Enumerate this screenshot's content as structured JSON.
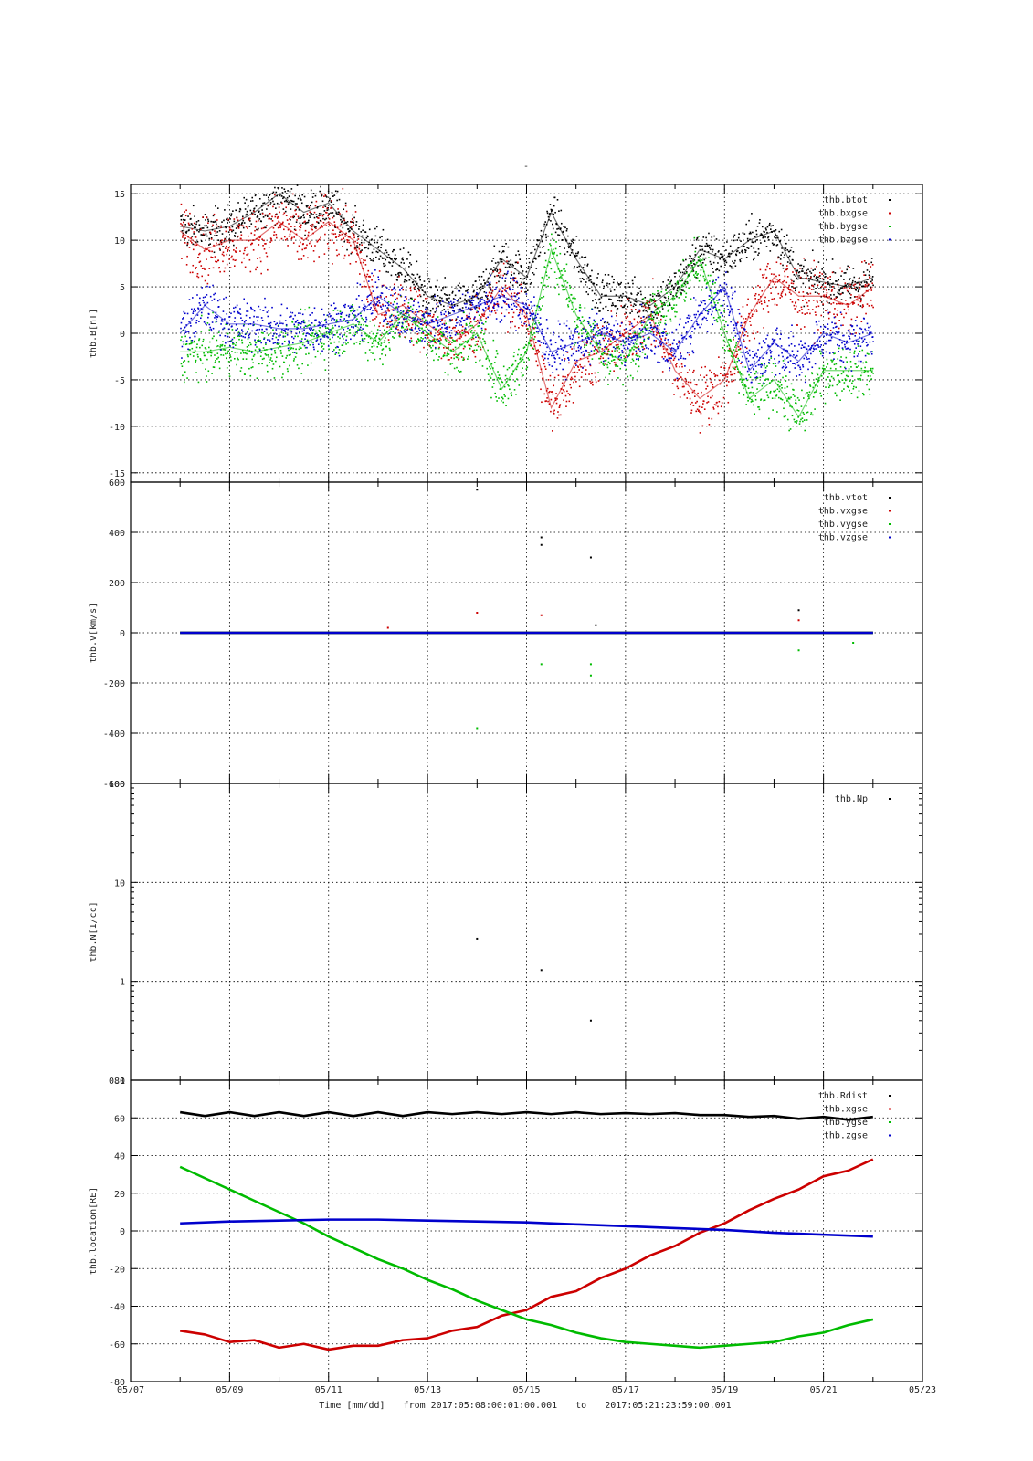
{
  "figure": {
    "top_mark": "-",
    "time_axis": {
      "label": "Time [mm/dd]",
      "from_text": "from 2017:05:08:00:01:00.001",
      "to_text": "to",
      "end_text": "2017:05:21:23:59:00.001",
      "ticks": [
        "05/07",
        "05/09",
        "05/11",
        "05/13",
        "05/15",
        "05/17",
        "05/19",
        "05/21",
        "05/23"
      ]
    }
  },
  "chart_data": [
    {
      "type": "scatter",
      "ylabel": "thb.B[nT]",
      "xlim": [
        7,
        23
      ],
      "ylim": [
        -16,
        16
      ],
      "yscale": "linear",
      "yticks": [
        -15,
        -10,
        -5,
        0,
        5,
        10,
        15
      ],
      "grid": true,
      "legend": "top-right",
      "series": [
        {
          "name": "thb.btot",
          "color": "#000000",
          "x": [
            8.0,
            8.5,
            9.0,
            9.5,
            10.0,
            10.5,
            11.0,
            11.5,
            12.0,
            12.5,
            13.0,
            13.5,
            14.0,
            14.5,
            15.0,
            15.5,
            16.0,
            16.5,
            17.0,
            17.5,
            18.0,
            18.5,
            19.0,
            19.5,
            20.0,
            20.5,
            21.0,
            21.5,
            22.0
          ],
          "y": [
            11.5,
            11,
            11.5,
            13,
            15,
            13,
            14,
            11,
            9,
            7,
            4,
            3,
            4,
            8,
            6,
            13,
            8,
            4,
            4,
            3,
            5,
            9,
            8,
            10,
            11,
            6,
            5.5,
            5,
            6
          ]
        },
        {
          "name": "thb.bxgse",
          "color": "#cc0000",
          "x": [
            8.0,
            8.5,
            9.0,
            9.5,
            10.0,
            10.5,
            11.0,
            11.5,
            12.0,
            12.5,
            13.0,
            13.5,
            14.0,
            14.5,
            15.0,
            15.5,
            16.0,
            16.5,
            17.0,
            17.5,
            18.0,
            18.5,
            19.0,
            19.5,
            20.0,
            20.5,
            21.0,
            21.5,
            22.0
          ],
          "y": [
            11,
            9,
            10,
            10,
            12,
            10,
            12,
            10,
            2,
            3,
            1,
            -1,
            1,
            5,
            2,
            -8,
            -3,
            -2,
            0,
            2,
            -4,
            -7,
            -5,
            2,
            6,
            4,
            4,
            3,
            5
          ]
        },
        {
          "name": "thb.bygse",
          "color": "#00bb00",
          "x": [
            8.0,
            8.5,
            9.0,
            9.5,
            10.0,
            10.5,
            11.0,
            11.5,
            12.0,
            12.5,
            13.0,
            13.5,
            14.0,
            14.5,
            15.0,
            15.5,
            16.0,
            16.5,
            17.0,
            17.5,
            18.0,
            18.5,
            19.0,
            19.5,
            20.0,
            20.5,
            21.0,
            21.5,
            22.0
          ],
          "y": [
            -2,
            -2,
            -1.5,
            -2,
            -1.5,
            -1,
            0,
            1,
            -1,
            2,
            0,
            -2,
            0,
            -6,
            -2,
            9,
            2,
            -2,
            -3,
            2,
            4,
            8,
            0,
            -7,
            -5,
            -9,
            -4,
            -4,
            -4
          ]
        },
        {
          "name": "thb.bzgse",
          "color": "#0000cc",
          "x": [
            8.0,
            8.5,
            9.0,
            9.5,
            10.0,
            10.5,
            11.0,
            11.5,
            12.0,
            12.5,
            13.0,
            13.5,
            14.0,
            14.5,
            15.0,
            15.5,
            16.0,
            16.5,
            17.0,
            17.5,
            18.0,
            18.5,
            19.0,
            19.5,
            20.0,
            20.5,
            21.0,
            21.5,
            22.0
          ],
          "y": [
            0,
            3,
            1,
            1,
            0.5,
            0.5,
            1,
            1.5,
            4,
            2,
            1,
            2,
            3,
            4,
            3,
            -2,
            -1,
            0,
            -1,
            0,
            -2,
            2,
            5,
            -4,
            -1,
            -3,
            0,
            -1,
            0
          ]
        }
      ]
    },
    {
      "type": "scatter",
      "ylabel": "thb.V[km/s]",
      "xlim": [
        7,
        23
      ],
      "ylim": [
        -600,
        600
      ],
      "yscale": "linear",
      "yticks": [
        -600,
        -400,
        -200,
        0,
        200,
        400,
        600
      ],
      "grid": true,
      "legend": "top-right",
      "series": [
        {
          "name": "thb.vtot",
          "color": "#000000",
          "x": [
            8.0,
            22.0
          ],
          "y": [
            0,
            0
          ],
          "outliers_x": [
            14.0,
            15.3,
            15.3,
            16.3,
            16.4,
            20.5
          ],
          "outliers_y": [
            570,
            380,
            350,
            300,
            30,
            90
          ]
        },
        {
          "name": "thb.vxgse",
          "color": "#cc0000",
          "x": [
            8.0,
            22.0
          ],
          "y": [
            0,
            0
          ],
          "outliers_x": [
            14.0,
            15.3,
            20.5,
            12.2
          ],
          "outliers_y": [
            80,
            70,
            50,
            20
          ]
        },
        {
          "name": "thb.vygse",
          "color": "#00bb00",
          "x": [
            8.0,
            22.0
          ],
          "y": [
            0,
            0
          ],
          "outliers_x": [
            14.0,
            15.3,
            16.3,
            16.3,
            20.5,
            21.6
          ],
          "outliers_y": [
            -380,
            -125,
            -125,
            -170,
            -70,
            -40
          ]
        },
        {
          "name": "thb.vzgse",
          "color": "#0000cc",
          "x": [
            8.0,
            22.0
          ],
          "y": [
            0,
            0
          ],
          "outliers_x": [],
          "outliers_y": []
        }
      ]
    },
    {
      "type": "scatter",
      "ylabel": "thb.N[1/cc]",
      "xlim": [
        7,
        23
      ],
      "ylim": [
        0.1,
        100
      ],
      "yscale": "log",
      "yticks": [
        0.1,
        1,
        10,
        100
      ],
      "ytick_labels": [
        "0.1",
        "1",
        "10",
        "100"
      ],
      "grid": true,
      "legend": "top-right",
      "series": [
        {
          "name": "thb.Np",
          "color": "#000000",
          "x": [
            14.0,
            15.3,
            16.3
          ],
          "y": [
            2.7,
            1.3,
            0.4
          ]
        }
      ]
    },
    {
      "type": "line",
      "ylabel": "thb.location[RE]",
      "xlim": [
        7,
        23
      ],
      "ylim": [
        -80,
        80
      ],
      "yscale": "linear",
      "yticks": [
        -80,
        -60,
        -40,
        -20,
        0,
        20,
        40,
        60,
        80
      ],
      "grid": true,
      "legend": "top-right",
      "series": [
        {
          "name": "thb.Rdist",
          "color": "#000000",
          "x": [
            8.0,
            8.5,
            9.0,
            9.5,
            10.0,
            10.5,
            11.0,
            11.5,
            12.0,
            12.5,
            13.0,
            13.5,
            14.0,
            14.5,
            15.0,
            15.5,
            16.0,
            16.5,
            17.0,
            17.5,
            18.0,
            18.5,
            19.0,
            19.5,
            20.0,
            20.5,
            21.0,
            21.5,
            22.0
          ],
          "y": [
            63,
            61,
            63,
            61,
            63,
            61,
            63,
            61,
            63,
            61,
            63,
            62,
            63,
            62,
            63,
            62,
            63,
            62,
            62.5,
            62,
            62.5,
            61.5,
            61.5,
            60.5,
            61,
            59.5,
            60.5,
            59,
            60.5
          ]
        },
        {
          "name": "thb.xgse",
          "color": "#cc0000",
          "x": [
            8.0,
            8.5,
            9.0,
            9.5,
            10.0,
            10.5,
            11.0,
            11.5,
            12.0,
            12.5,
            13.0,
            13.5,
            14.0,
            14.5,
            15.0,
            15.5,
            16.0,
            16.5,
            17.0,
            17.5,
            18.0,
            18.5,
            19.0,
            19.5,
            20.0,
            20.5,
            21.0,
            21.5,
            22.0
          ],
          "y": [
            -53,
            -55,
            -59,
            -58,
            -62,
            -60,
            -63,
            -61,
            -61,
            -58,
            -57,
            -53,
            -51,
            -45,
            -42,
            -35,
            -32,
            -25,
            -20,
            -13,
            -8,
            -1,
            4,
            11,
            17,
            22,
            29,
            32,
            38
          ]
        },
        {
          "name": "thb.ygse",
          "color": "#00bb00",
          "x": [
            8.0,
            8.5,
            9.0,
            9.5,
            10.0,
            10.5,
            11.0,
            11.5,
            12.0,
            12.5,
            13.0,
            13.5,
            14.0,
            14.5,
            15.0,
            15.5,
            16.0,
            16.5,
            17.0,
            17.5,
            18.0,
            18.5,
            19.0,
            19.5,
            20.0,
            20.5,
            21.0,
            21.5,
            22.0
          ],
          "y": [
            34,
            28,
            22,
            16,
            10,
            4,
            -3,
            -9,
            -15,
            -20,
            -26,
            -31,
            -37,
            -42,
            -47,
            -50,
            -54,
            -57,
            -59,
            -60,
            -61,
            -62,
            -61,
            -60,
            -59,
            -56,
            -54,
            -50,
            -47
          ]
        },
        {
          "name": "thb.zgse",
          "color": "#0000cc",
          "x": [
            8.0,
            9.0,
            10.0,
            11.0,
            12.0,
            13.0,
            14.0,
            15.0,
            16.0,
            17.0,
            18.0,
            19.0,
            20.0,
            21.0,
            22.0
          ],
          "y": [
            4,
            5,
            5.5,
            6,
            6,
            5.5,
            5,
            4.5,
            3.5,
            2.5,
            1.5,
            0.5,
            -1,
            -2,
            -3
          ]
        }
      ]
    }
  ]
}
